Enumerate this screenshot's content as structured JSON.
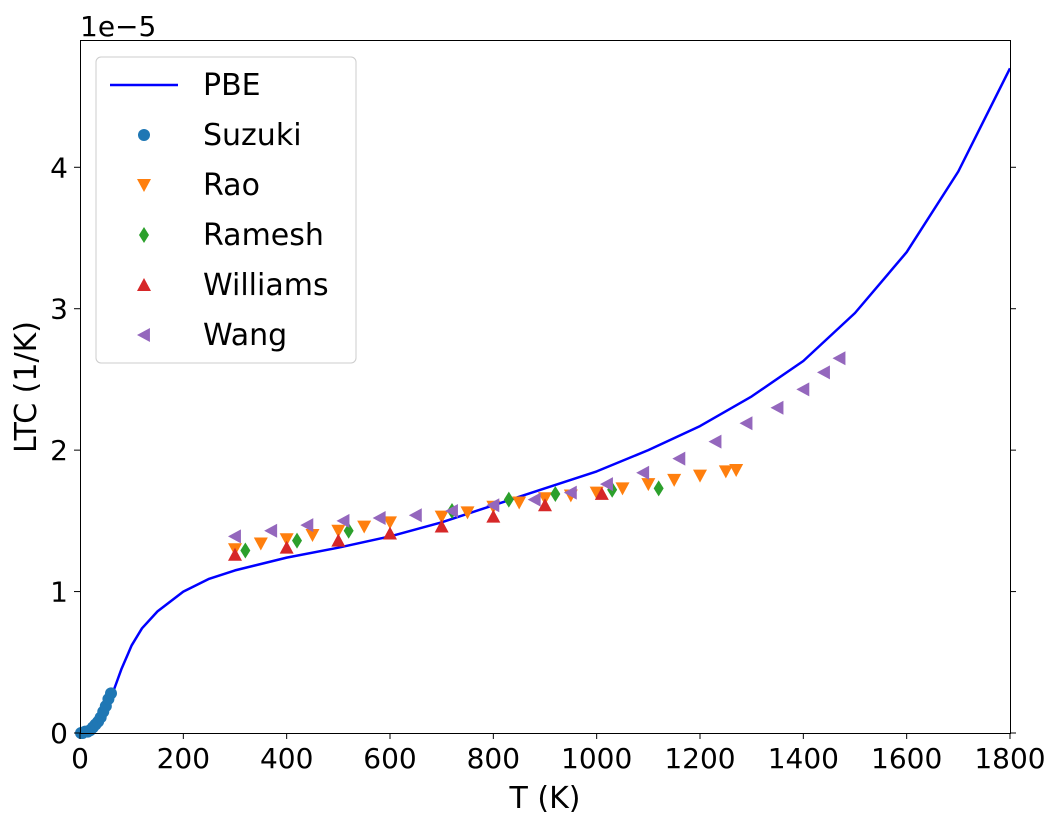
{
  "chart_data": {
    "type": "scatter",
    "title": "",
    "xlabel": "T (K)",
    "ylabel": "LTC (1/K)",
    "offset_text": "1e−5",
    "xlim": [
      0,
      1800
    ],
    "ylim": [
      0,
      4.9
    ],
    "y_scale_factor": 1e-05,
    "xticks": [
      0,
      200,
      400,
      600,
      800,
      1000,
      1200,
      1400,
      1600,
      1800
    ],
    "xtick_labels": [
      "0",
      "200",
      "400",
      "600",
      "800",
      "1000",
      "1200",
      "1400",
      "1600",
      "1800"
    ],
    "yticks": [
      0,
      1,
      2,
      3,
      4
    ],
    "ytick_labels": [
      "0",
      "1",
      "2",
      "3",
      "4"
    ],
    "grid": false,
    "legend_position": "top-left",
    "series": [
      {
        "name": "PBE",
        "kind": "line",
        "color": "#0000ff",
        "marker": "none",
        "x": [
          0,
          20,
          40,
          50,
          60,
          70,
          80,
          100,
          120,
          150,
          200,
          250,
          300,
          400,
          500,
          600,
          700,
          800,
          900,
          1000,
          1100,
          1200,
          1300,
          1400,
          1500,
          1600,
          1700,
          1800
        ],
        "y": [
          0.0,
          0.05,
          0.1,
          0.17,
          0.25,
          0.35,
          0.45,
          0.62,
          0.74,
          0.86,
          1.0,
          1.09,
          1.15,
          1.24,
          1.31,
          1.39,
          1.49,
          1.61,
          1.73,
          1.85,
          2.0,
          2.17,
          2.38,
          2.63,
          2.97,
          3.4,
          3.97,
          4.7
        ]
      },
      {
        "name": "Suzuki",
        "kind": "scatter",
        "color": "#1f77b4",
        "marker": "circle",
        "x": [
          2,
          5,
          10,
          15,
          20,
          25,
          30,
          35,
          40,
          45,
          50,
          55,
          60
        ],
        "y": [
          0.0,
          0.0,
          0.01,
          0.01,
          0.02,
          0.04,
          0.06,
          0.08,
          0.11,
          0.15,
          0.19,
          0.24,
          0.28
        ]
      },
      {
        "name": "Rao",
        "kind": "scatter",
        "color": "#ff7f0e",
        "marker": "triangle-down",
        "x": [
          300,
          350,
          400,
          450,
          500,
          550,
          600,
          700,
          750,
          800,
          850,
          900,
          950,
          1000,
          1050,
          1100,
          1150,
          1200,
          1250,
          1270
        ],
        "y": [
          1.3,
          1.34,
          1.37,
          1.4,
          1.43,
          1.46,
          1.49,
          1.53,
          1.56,
          1.6,
          1.63,
          1.66,
          1.68,
          1.7,
          1.73,
          1.76,
          1.79,
          1.82,
          1.85,
          1.86
        ]
      },
      {
        "name": "Ramesh",
        "kind": "scatter",
        "color": "#2ca02c",
        "marker": "diamond",
        "x": [
          320,
          420,
          520,
          720,
          830,
          920,
          1030,
          1120
        ],
        "y": [
          1.29,
          1.36,
          1.43,
          1.57,
          1.65,
          1.69,
          1.72,
          1.73
        ]
      },
      {
        "name": "Williams",
        "kind": "scatter",
        "color": "#d62728",
        "marker": "triangle-up",
        "x": [
          300,
          400,
          500,
          600,
          700,
          800,
          900,
          1010
        ],
        "y": [
          1.26,
          1.31,
          1.36,
          1.41,
          1.46,
          1.53,
          1.61,
          1.69
        ]
      },
      {
        "name": "Wang",
        "kind": "scatter",
        "color": "#9467bd",
        "marker": "triangle-left",
        "x": [
          300,
          370,
          440,
          510,
          580,
          650,
          720,
          800,
          880,
          950,
          1020,
          1090,
          1160,
          1230,
          1290,
          1350,
          1400,
          1440,
          1470
        ],
        "y": [
          1.39,
          1.43,
          1.47,
          1.5,
          1.52,
          1.54,
          1.57,
          1.61,
          1.65,
          1.7,
          1.76,
          1.84,
          1.94,
          2.06,
          2.19,
          2.3,
          2.43,
          2.55,
          2.65
        ]
      }
    ]
  }
}
